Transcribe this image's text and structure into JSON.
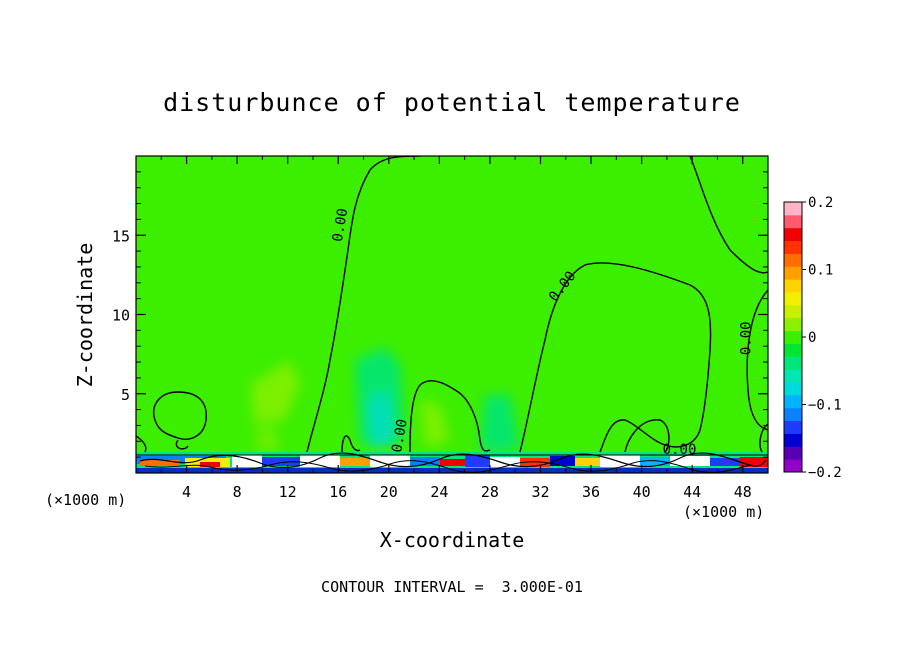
{
  "chart_data": {
    "type": "heatmap",
    "title": "disturbunce of potential temperature",
    "xlabel": "X-coordinate",
    "ylabel": "Z-coordinate",
    "x_unit_left": "(×1000 m)",
    "x_unit_right": "(×1000 m)",
    "xlim": [
      0,
      50
    ],
    "ylim": [
      0,
      20
    ],
    "x_ticks": [
      4,
      8,
      12,
      16,
      20,
      24,
      28,
      32,
      36,
      40,
      44,
      48
    ],
    "x_tick_labels": [
      "4",
      "8",
      "12",
      "16",
      "20",
      "24",
      "28",
      "32",
      "36",
      "40",
      "44",
      "48"
    ],
    "y_ticks": [
      5,
      10,
      15
    ],
    "y_tick_labels": [
      "5",
      "10",
      "15"
    ],
    "colorbar": {
      "range": [
        -0.2,
        0.2
      ],
      "tick_values": [
        0.2,
        0.1,
        0,
        -0.1,
        -0.2
      ],
      "tick_labels": [
        "0.2",
        "0.1",
        "0",
        "−0.1",
        "−0.2"
      ],
      "colors": [
        "#9400c8",
        "#5a00b4",
        "#0000d2",
        "#1e3cff",
        "#0a82ff",
        "#00b4ff",
        "#00dcdc",
        "#00e6b4",
        "#00e678",
        "#00e632",
        "#3cee00",
        "#8cf000",
        "#c8f000",
        "#f0f000",
        "#ffd200",
        "#ffa000",
        "#ff6e00",
        "#ff3200",
        "#f00000",
        "#ff5a6e",
        "#ffb4c8"
      ]
    },
    "contour_labels": [
      {
        "text": "0.00",
        "x": 16.5,
        "z": 15.6,
        "rotate": -80
      },
      {
        "text": "0.00",
        "x": 34.0,
        "z": 11.6,
        "rotate": -52
      },
      {
        "text": "0.00",
        "x": 48.6,
        "z": 8.5,
        "rotate": -90
      },
      {
        "text": "0.00",
        "x": 21.2,
        "z": 2.3,
        "rotate": -80
      },
      {
        "text": "0.00",
        "x": 43.0,
        "z": 1.2,
        "rotate": 0
      }
    ],
    "background_value": 0.0,
    "contour_interval_text": "CONTOUR INTERVAL =  3.000E-01"
  }
}
